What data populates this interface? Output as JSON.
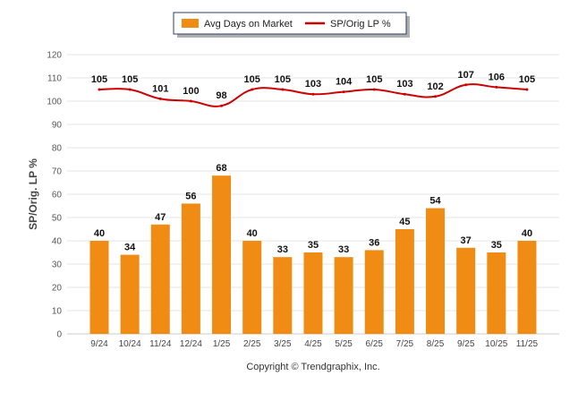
{
  "chart_data": {
    "type": "bar",
    "title": "",
    "xlabel": "",
    "ylabel": "SP/Orig. LP %",
    "ylim": [
      0,
      120
    ],
    "yticks": [
      0,
      10,
      20,
      30,
      40,
      50,
      60,
      70,
      80,
      90,
      100,
      110,
      120
    ],
    "grid": true,
    "legend_placement": "top-center",
    "categories": [
      "9/24",
      "10/24",
      "11/24",
      "12/24",
      "1/25",
      "2/25",
      "3/25",
      "4/25",
      "5/25",
      "6/25",
      "7/25",
      "8/25",
      "9/25",
      "10/25",
      "11/25"
    ],
    "series": [
      {
        "name": "Avg Days on Market",
        "type": "bar",
        "color": "#F08C14",
        "values": [
          40,
          34,
          47,
          56,
          68,
          40,
          33,
          35,
          33,
          36,
          45,
          54,
          37,
          35,
          40
        ]
      },
      {
        "name": "SP/Orig LP %",
        "type": "line",
        "color": "#CC0000",
        "values": [
          105,
          105,
          101,
          100,
          98,
          105,
          105,
          103,
          104,
          105,
          103,
          102,
          107,
          106,
          105
        ]
      }
    ],
    "footer": "Copyright © Trendgraphix, Inc."
  }
}
